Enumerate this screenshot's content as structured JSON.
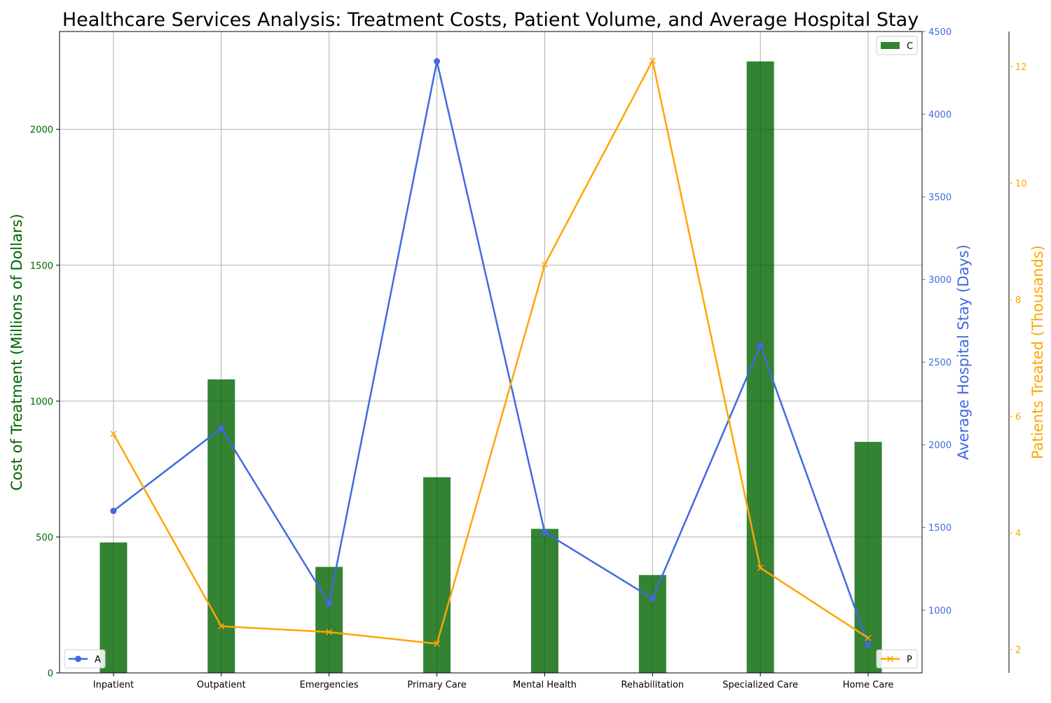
{
  "chart_data": {
    "type": "bar",
    "title": "Healthcare Services Analysis: Treatment Costs, Patient Volume, and Average Hospital Stay",
    "categories": [
      "Inpatient",
      "Outpatient",
      "Emergencies",
      "Primary Care",
      "Mental Health",
      "Rehabilitation",
      "Specialized Care",
      "Home Care"
    ],
    "grid": true,
    "axes": {
      "cost": {
        "label": "Cost of Treatment (Millions of Dollars)",
        "range": [
          0,
          2360
        ],
        "ticks": [
          0,
          500,
          1000,
          1500,
          2000
        ],
        "color": "#006400",
        "side": "left"
      },
      "stay": {
        "label": "Average Hospital Stay (Days)",
        "range": [
          620,
          4500
        ],
        "ticks": [
          1000,
          1500,
          2000,
          2500,
          3000,
          3500,
          4000,
          4500
        ],
        "color": "#4169e1",
        "side": "right"
      },
      "patients": {
        "label": "Patients Treated (Thousands)",
        "range": [
          1.6,
          12.6
        ],
        "ticks": [
          2,
          4,
          6,
          8,
          10,
          12
        ],
        "color": "#ffa500",
        "side": "right-outer"
      }
    },
    "series": [
      {
        "key": "cost",
        "type": "bar",
        "axis": "cost",
        "legend": "C",
        "color": "#006400",
        "values": [
          480,
          1080,
          390,
          720,
          530,
          360,
          2250,
          850
        ]
      },
      {
        "key": "stay",
        "type": "line",
        "axis": "stay",
        "legend": "A",
        "color": "#4169e1",
        "marker": "circle",
        "values": [
          1600,
          2100,
          1040,
          4320,
          1470,
          1070,
          2600,
          790
        ]
      },
      {
        "key": "patients",
        "type": "line",
        "axis": "patients",
        "legend": "P",
        "color": "#ffa500",
        "marker": "x",
        "values": [
          5.7,
          2.4,
          2.3,
          2.1,
          8.6,
          12.1,
          3.4,
          2.2
        ]
      }
    ],
    "legends": [
      {
        "series": "cost",
        "position": "top-right"
      },
      {
        "series": "stay",
        "position": "bottom-left"
      },
      {
        "series": "patients",
        "position": "bottom-right"
      }
    ]
  }
}
